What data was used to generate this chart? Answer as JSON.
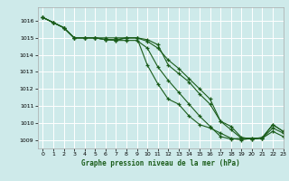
{
  "title": "Graphe pression niveau de la mer (hPa)",
  "bg_color": "#ceeaea",
  "grid_color": "#ffffff",
  "line_color": "#1a5c1a",
  "xlim": [
    -0.5,
    23
  ],
  "ylim": [
    1008.5,
    1016.8
  ],
  "xticks": [
    0,
    1,
    2,
    3,
    4,
    5,
    6,
    7,
    8,
    9,
    10,
    11,
    12,
    13,
    14,
    15,
    16,
    17,
    18,
    19,
    20,
    21,
    22,
    23
  ],
  "yticks": [
    1009,
    1010,
    1011,
    1012,
    1013,
    1014,
    1015,
    1016
  ],
  "lines": [
    [
      1016.2,
      1015.9,
      1015.6,
      1015.0,
      1015.0,
      1015.0,
      1014.9,
      1014.85,
      1014.85,
      1014.85,
      1014.4,
      1013.3,
      1012.5,
      1011.8,
      1011.1,
      1010.4,
      1009.8,
      1009.2,
      1009.05,
      1009.1,
      1009.1,
      1009.1,
      1009.7,
      1009.4
    ],
    [
      1016.2,
      1015.9,
      1015.6,
      1015.0,
      1015.0,
      1015.0,
      1014.9,
      1014.85,
      1015.0,
      1015.0,
      1014.8,
      1014.4,
      1013.7,
      1013.2,
      1012.6,
      1012.0,
      1011.4,
      1010.1,
      1009.6,
      1009.1,
      1009.05,
      1009.1,
      1009.9,
      1009.5
    ],
    [
      1016.2,
      1015.9,
      1015.6,
      1015.0,
      1015.0,
      1015.0,
      1014.9,
      1014.9,
      1015.0,
      1015.0,
      1014.9,
      1014.6,
      1013.4,
      1012.9,
      1012.4,
      1011.7,
      1011.1,
      1010.1,
      1009.8,
      1009.15,
      1009.05,
      1009.15,
      1009.9,
      1009.5
    ],
    [
      1016.2,
      1015.9,
      1015.6,
      1015.0,
      1015.0,
      1015.0,
      1015.0,
      1015.0,
      1015.0,
      1015.0,
      1013.4,
      1012.3,
      1011.4,
      1011.1,
      1010.4,
      1009.9,
      1009.7,
      1009.4,
      1009.1,
      1009.0,
      1009.1,
      1009.1,
      1009.5,
      1009.2
    ]
  ]
}
